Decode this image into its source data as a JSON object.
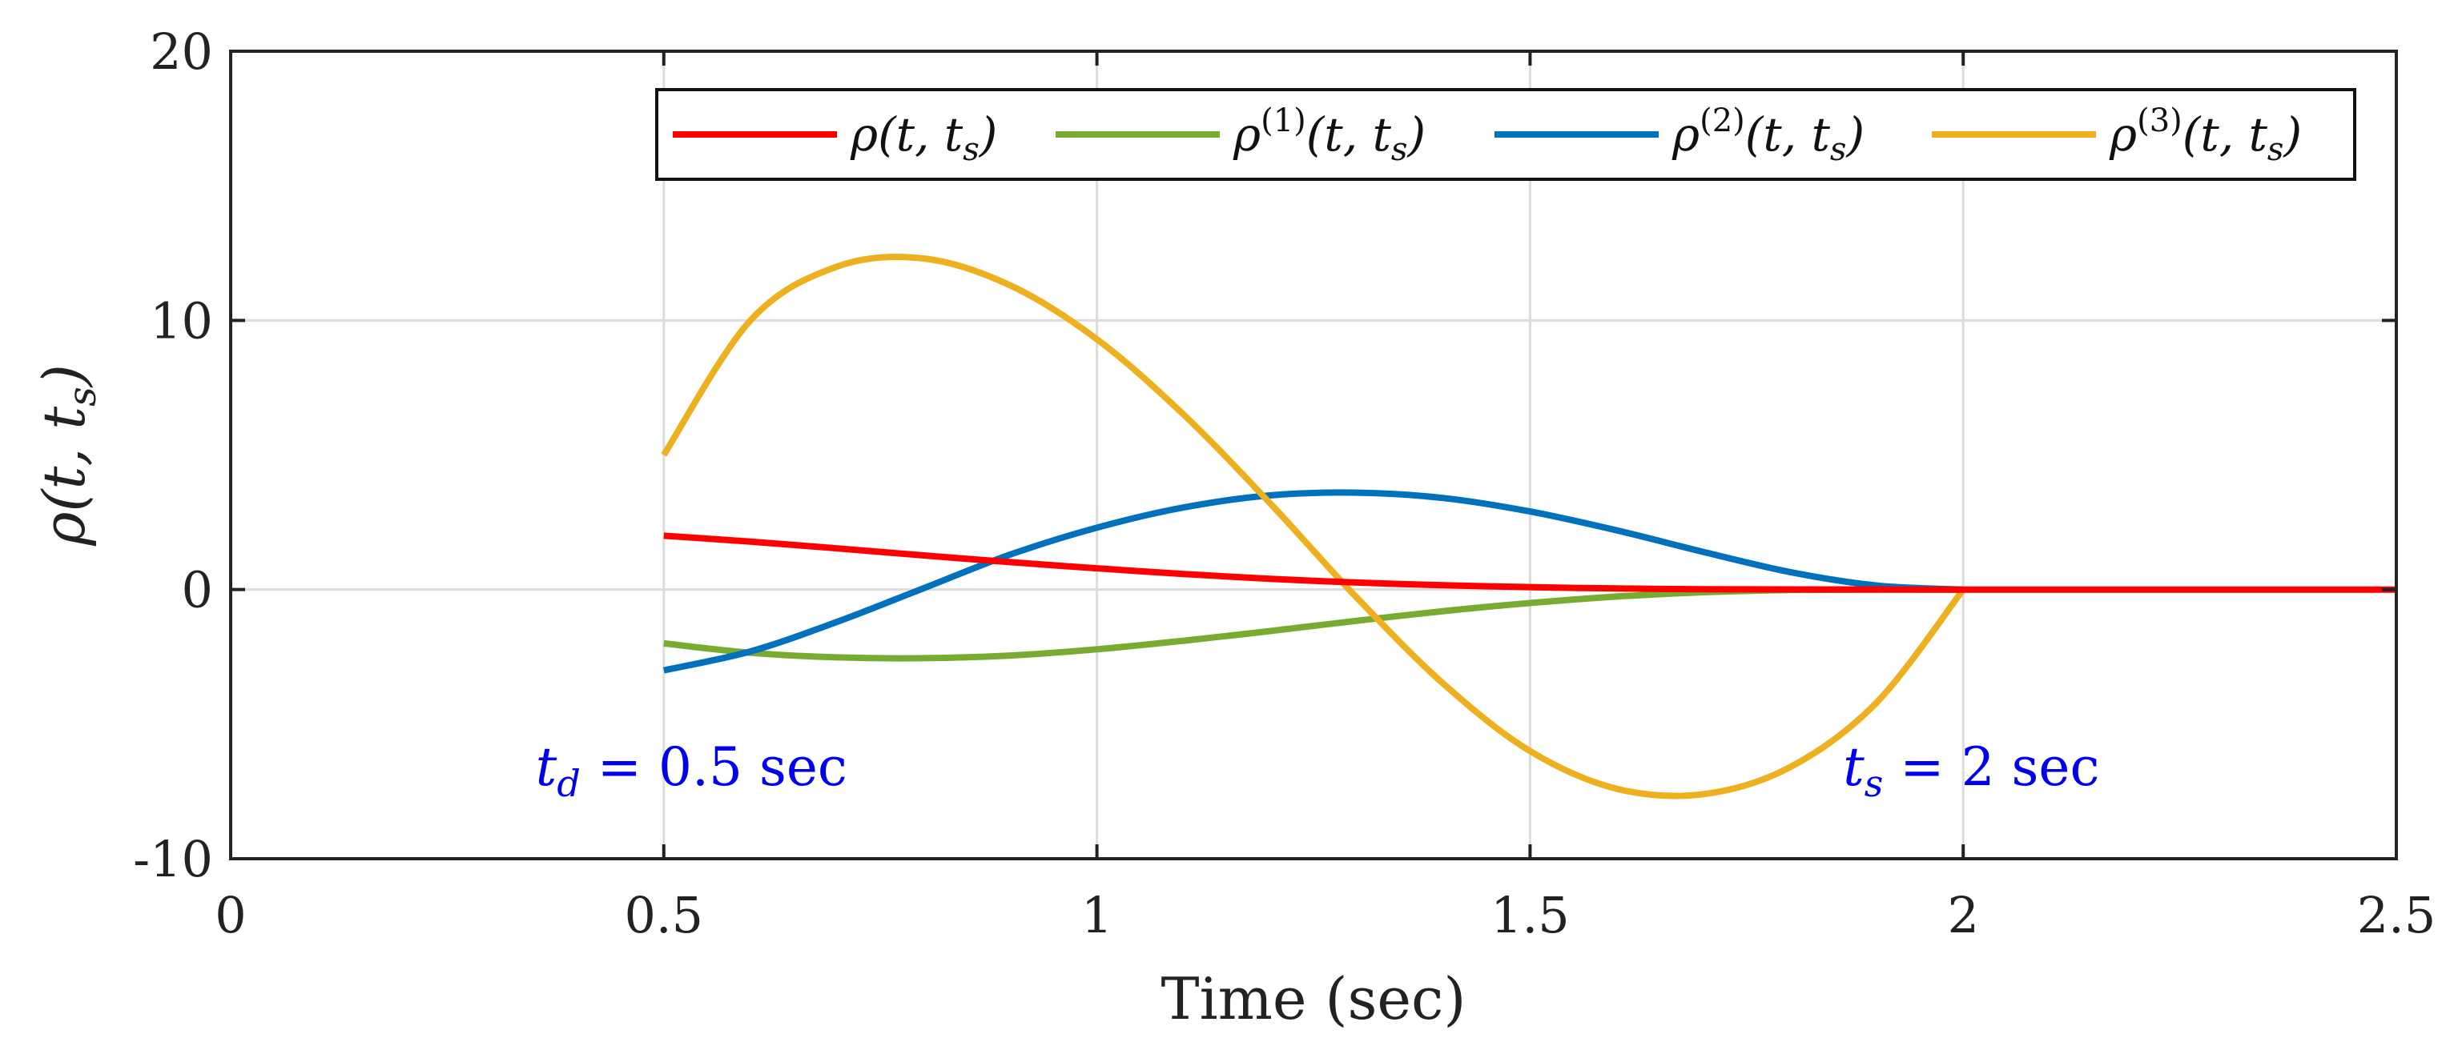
{
  "chart_data": {
    "type": "line",
    "xlabel": "Time (sec)",
    "ylabel": "ρ(t, t_s)",
    "xlim": [
      0,
      2.5
    ],
    "ylim": [
      -10,
      20
    ],
    "xticks": [
      0,
      0.5,
      1,
      1.5,
      2,
      2.5
    ],
    "xtick_labels": [
      "0",
      "0.5",
      "1",
      "1.5",
      "2",
      "2.5"
    ],
    "yticks": [
      -10,
      0,
      10,
      20
    ],
    "ytick_labels": [
      "-10",
      "0",
      "10",
      "20"
    ],
    "grid": true,
    "legend_position": "top-right",
    "series": [
      {
        "name": "ρ(t, t_s)",
        "color": "#ff0000",
        "x": [
          0.5,
          0.6,
          0.7,
          0.8,
          0.9,
          1.0,
          1.1,
          1.2,
          1.3,
          1.4,
          1.5,
          1.6,
          1.7,
          1.8,
          1.9,
          2.0,
          2.1,
          2.2,
          2.3,
          2.4,
          2.5
        ],
        "y": [
          2.0,
          1.78,
          1.53,
          1.27,
          1.02,
          0.79,
          0.58,
          0.4,
          0.26,
          0.16,
          0.09,
          0.04,
          0.015,
          0.004,
          0.001,
          0,
          0,
          0,
          0,
          0,
          0
        ]
      },
      {
        "name": "ρ^(1)(t, t_s)",
        "color": "#77ac30",
        "x": [
          0.5,
          0.6,
          0.7,
          0.8,
          0.9,
          1.0,
          1.1,
          1.2,
          1.3,
          1.4,
          1.5,
          1.6,
          1.7,
          1.8,
          1.9,
          2.0
        ],
        "y": [
          -2.0,
          -2.35,
          -2.52,
          -2.55,
          -2.45,
          -2.22,
          -1.9,
          -1.54,
          -1.16,
          -0.8,
          -0.5,
          -0.26,
          -0.1,
          -0.02,
          -0.002,
          0
        ]
      },
      {
        "name": "ρ^(2)(t, t_s)",
        "color": "#0072bd",
        "x": [
          0.5,
          0.6,
          0.7,
          0.8,
          0.9,
          1.0,
          1.1,
          1.2,
          1.3,
          1.4,
          1.5,
          1.6,
          1.7,
          1.8,
          1.9,
          2.0
        ],
        "y": [
          -3.0,
          -2.3,
          -1.2,
          0.05,
          1.3,
          2.3,
          3.05,
          3.5,
          3.6,
          3.4,
          2.9,
          2.2,
          1.4,
          0.65,
          0.15,
          0
        ]
      },
      {
        "name": "ρ^(3)(t, t_s)",
        "color": "#edb120",
        "x": [
          0.5,
          0.6,
          0.7,
          0.8,
          0.9,
          1.0,
          1.1,
          1.2,
          1.3,
          1.4,
          1.5,
          1.6,
          1.7,
          1.8,
          1.9,
          2.0
        ],
        "y": [
          5.0,
          10.0,
          12.0,
          12.3,
          11.3,
          9.3,
          6.5,
          3.2,
          -0.3,
          -3.5,
          -6.0,
          -7.4,
          -7.6,
          -6.6,
          -4.2,
          0
        ]
      }
    ],
    "annotations": [
      {
        "text": "t_d = 0.5 sec",
        "base": "t",
        "sub": "d",
        "rest": " = 0.5 sec",
        "x": 0.5,
        "y": -7.0
      },
      {
        "text": "t_s = 2 sec",
        "base": "t",
        "sub": "s",
        "rest": " = 2 sec",
        "x": 2.0,
        "y": -7.0
      }
    ]
  }
}
